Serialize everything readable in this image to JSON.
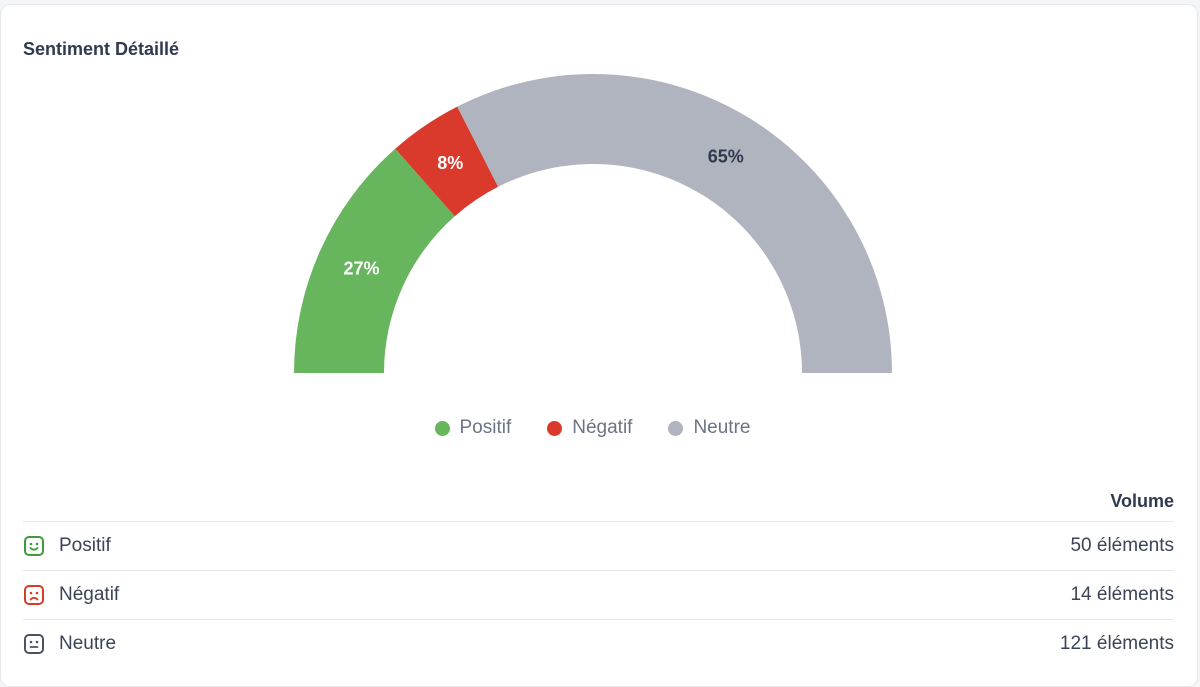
{
  "card": {
    "title": "Sentiment Détaillé"
  },
  "chart_data": {
    "type": "pie",
    "style": "semi-donut",
    "categories": [
      "Positif",
      "Négatif",
      "Neutre"
    ],
    "values": [
      27,
      8,
      65
    ],
    "labels": [
      "27%",
      "8%",
      "65%"
    ],
    "colors": [
      "#67b65e",
      "#d93a2b",
      "#afb4bf"
    ],
    "label_colors": [
      "#ffffff",
      "#ffffff",
      "#2f3a4f"
    ],
    "legend_position": "bottom-center"
  },
  "legend": [
    {
      "label": "Positif",
      "color": "#67b65e"
    },
    {
      "label": "Négatif",
      "color": "#d93a2b"
    },
    {
      "label": "Neutre",
      "color": "#afb4bf"
    }
  ],
  "table": {
    "header": "Volume",
    "rows": [
      {
        "icon": "smile-icon",
        "label": "Positif",
        "value": "50 éléments",
        "color": "#3e9a3a"
      },
      {
        "icon": "frown-icon",
        "label": "Négatif",
        "value": "14 éléments",
        "color": "#d93a2b"
      },
      {
        "icon": "neutral-face-icon",
        "label": "Neutre",
        "value": "121 éléments",
        "color": "#4a5263"
      }
    ]
  }
}
